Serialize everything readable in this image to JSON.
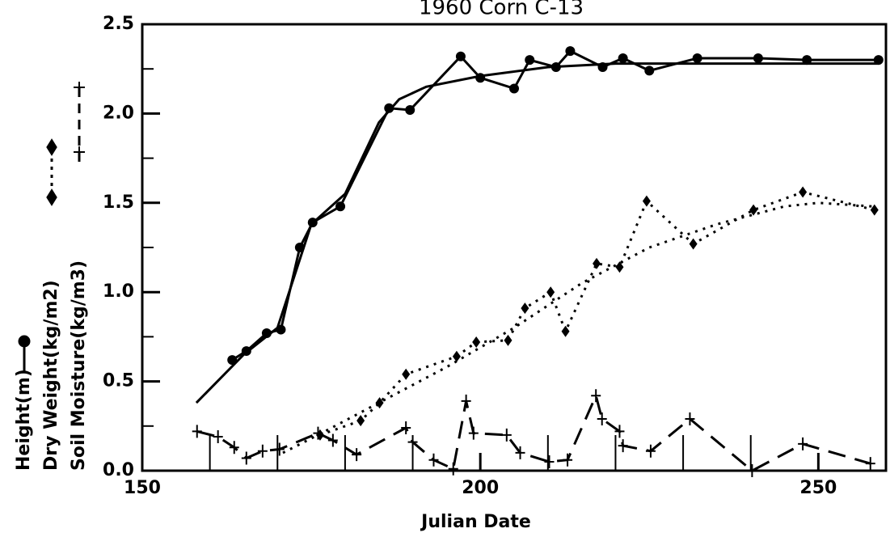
{
  "chart_data": {
    "type": "line",
    "title": "1960 Corn C-13",
    "x_label": "Julian Date",
    "y_labels": [
      "Height(m)",
      "Dry Weight(kg/m2)",
      "Soil Moisture(kg/m3)"
    ],
    "xlim": [
      150,
      260
    ],
    "ylim": [
      0,
      2.5
    ],
    "xticks": [
      150,
      200,
      250
    ],
    "xminorticks": [
      160,
      170,
      180,
      190,
      210,
      220,
      230,
      240
    ],
    "yticks": [
      {
        "value": 0,
        "label": "0.0"
      },
      0.5,
      {
        "value": 1,
        "label": "1.0"
      },
      1.5,
      {
        "value": 2,
        "label": "2.0"
      },
      2.5
    ],
    "yminorticks": [
      0.25,
      0.75,
      1.25,
      1.75,
      2.25
    ],
    "series": [
      {
        "name": "Height(m)",
        "color": "#000000",
        "marker": "circle",
        "dash": "solid",
        "x": [
          163.3,
          165.4,
          168.4,
          170.5,
          173.3,
          175.2,
          179.3,
          186.5,
          189.6,
          197.1,
          200.0,
          205.0,
          207.3,
          211.2,
          213.3,
          218.1,
          221.1,
          225.0,
          232.1,
          241.1,
          248.3,
          258.9
        ],
        "values": [
          0.62,
          0.67,
          0.77,
          0.79,
          1.25,
          1.39,
          1.48,
          2.03,
          2.02,
          2.32,
          2.2,
          2.14,
          2.3,
          2.26,
          2.35,
          2.26,
          2.31,
          2.24,
          2.31,
          2.31,
          2.3,
          2.3
        ]
      },
      {
        "color": "#000000",
        "marker": null,
        "dash": "solid",
        "x": [
          158,
          165,
          170,
          175,
          180,
          185,
          188,
          192,
          200,
          210,
          220,
          240,
          259
        ],
        "values": [
          0.38,
          0.65,
          0.8,
          1.38,
          1.55,
          1.95,
          2.08,
          2.15,
          2.21,
          2.26,
          2.28,
          2.28,
          2.28
        ]
      },
      {
        "name": "Dry Weight(kg/m2)",
        "color": "#000000",
        "marker": "diamond",
        "dash": "dotted",
        "x": [
          176.3,
          182.3,
          185.1,
          189.0,
          196.5,
          199.4,
          204.1,
          206.6,
          210.4,
          212.6,
          217.2,
          220.6,
          224.6,
          231.5,
          240.4,
          247.7,
          258.3
        ],
        "values": [
          0.2,
          0.28,
          0.38,
          0.54,
          0.64,
          0.72,
          0.73,
          0.91,
          1.0,
          0.78,
          1.16,
          1.14,
          1.51,
          1.27,
          1.46,
          1.56,
          1.46
        ]
      },
      {
        "color": "#000000",
        "marker": null,
        "dash": "dotted",
        "x": [
          170.8,
          176,
          185,
          195,
          205,
          215,
          225,
          235,
          245,
          250,
          258
        ],
        "values": [
          0.1,
          0.2,
          0.38,
          0.58,
          0.8,
          1.05,
          1.25,
          1.38,
          1.48,
          1.5,
          1.48
        ]
      },
      {
        "name": "Soil Moisture(kg/m3)",
        "color": "#000000",
        "marker": "plus",
        "dash": "dashed",
        "x": [
          158.1,
          161.2,
          163.6,
          165.4,
          167.8,
          170.3,
          176.0,
          178.2,
          181.7,
          189.0,
          190.0,
          193.1,
          196.0,
          197.9,
          199.0,
          203.9,
          205.9,
          210.2,
          212.9,
          217.1,
          218.0,
          220.6,
          221.1,
          225.2,
          231.0,
          240.2,
          247.7,
          257.7
        ],
        "values": [
          0.22,
          0.19,
          0.13,
          0.07,
          0.11,
          0.12,
          0.21,
          0.17,
          0.09,
          0.24,
          0.16,
          0.06,
          0.01,
          0.39,
          0.21,
          0.2,
          0.1,
          0.05,
          0.06,
          0.42,
          0.29,
          0.22,
          0.14,
          0.11,
          0.29,
          0.0,
          0.15,
          0.04
        ]
      }
    ]
  }
}
